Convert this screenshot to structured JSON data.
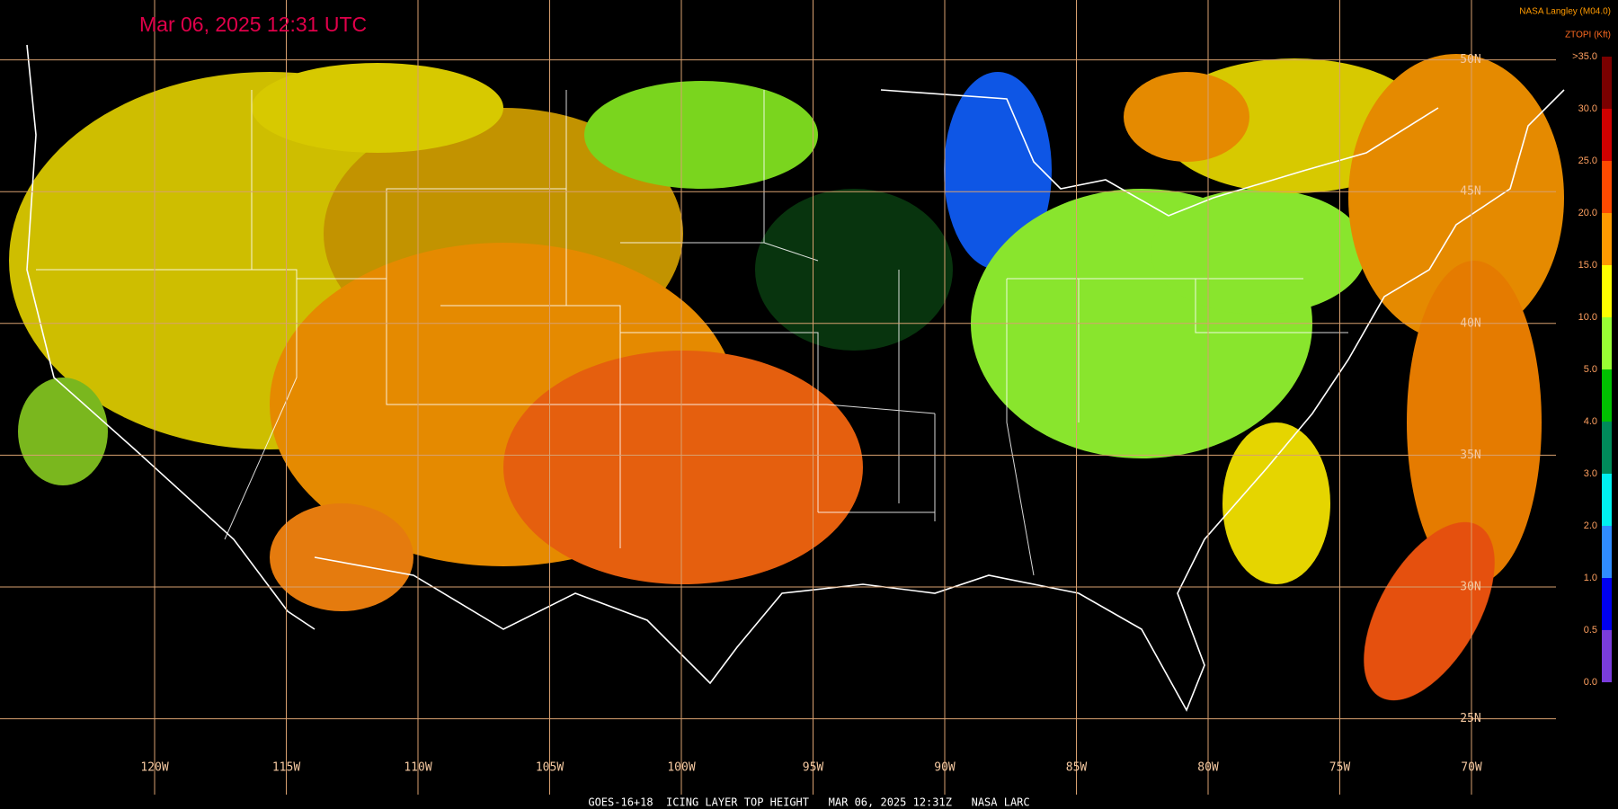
{
  "header": {
    "timestamp": "Mar 06, 2025 12:31 UTC",
    "credit": "NASA Langley (M04.0)",
    "product_unit": "ZTOPI (Kft)"
  },
  "map": {
    "lon_labels": [
      "120W",
      "115W",
      "110W",
      "105W",
      "100W",
      "95W",
      "90W",
      "85W",
      "80W",
      "75W",
      "70W"
    ],
    "lat_labels": [
      "50N",
      "45N",
      "40N",
      "35N",
      "30N",
      "25N"
    ]
  },
  "colorbar": {
    "labels": [
      ">35.0",
      "30.0",
      "25.0",
      "20.0",
      "15.0",
      "10.0",
      "5.0",
      "4.0",
      "3.0",
      "2.0",
      "1.0",
      "0.5",
      "0.0"
    ],
    "colors": [
      "#7a0000",
      "#d00000",
      "#ff4a00",
      "#ff9a00",
      "#ffff00",
      "#99ff33",
      "#00c000",
      "#008a5a",
      "#00f0f0",
      "#2f8cff",
      "#0000ee",
      "#7a3cdc"
    ]
  },
  "footer": {
    "caption": "GOES-16+18  ICING LAYER TOP HEIGHT   MAR 06, 2025 12:31Z   NASA LARC"
  }
}
